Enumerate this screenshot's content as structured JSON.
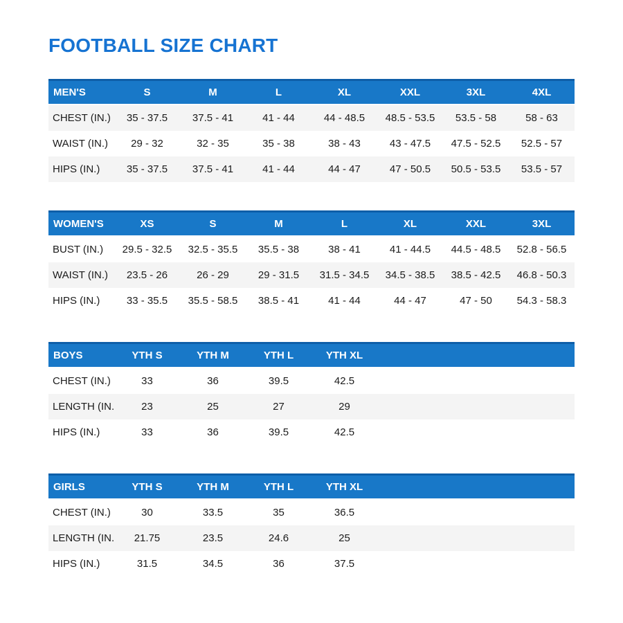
{
  "page": {
    "title": "FOOTBALL SIZE CHART"
  },
  "colors": {
    "accent_blue": "#1673d2",
    "header_blue": "#1878c8",
    "header_border": "#0e5ea8",
    "stripe_gray": "#f4f4f4",
    "text_dark": "#1b1b1b"
  },
  "tables": [
    {
      "id": "mens",
      "header": [
        "MEN'S",
        "S",
        "M",
        "L",
        "XL",
        "XXL",
        "3XL",
        "4XL"
      ],
      "rows": [
        {
          "label": "CHEST (IN.)",
          "striped": true,
          "values": [
            "35 - 37.5",
            "37.5 - 41",
            "41 - 44",
            "44 - 48.5",
            "48.5 - 53.5",
            "53.5 - 58",
            "58 - 63"
          ]
        },
        {
          "label": "WAIST (IN.)",
          "striped": false,
          "values": [
            "29 - 32",
            "32 - 35",
            "35 - 38",
            "38 - 43",
            "43 - 47.5",
            "47.5 - 52.5",
            "52.5 - 57"
          ]
        },
        {
          "label": "HIPS (IN.)",
          "striped": true,
          "values": [
            "35 - 37.5",
            "37.5 - 41",
            "41 - 44",
            "44 - 47",
            "47 - 50.5",
            "50.5 - 53.5",
            "53.5 - 57"
          ]
        }
      ]
    },
    {
      "id": "womens",
      "header": [
        "WOMEN'S",
        "XS",
        "S",
        "M",
        "L",
        "XL",
        "XXL",
        "3XL"
      ],
      "rows": [
        {
          "label": "BUST (IN.)",
          "striped": false,
          "values": [
            "29.5 - 32.5",
            "32.5 - 35.5",
            "35.5 - 38",
            "38 - 41",
            "41 - 44.5",
            "44.5 - 48.5",
            "52.8 - 56.5"
          ]
        },
        {
          "label": "WAIST (IN.)",
          "striped": true,
          "values": [
            "23.5 - 26",
            "26 - 29",
            "29 - 31.5",
            "31.5 - 34.5",
            "34.5 - 38.5",
            "38.5 - 42.5",
            "46.8 - 50.3"
          ]
        },
        {
          "label": "HIPS (IN.)",
          "striped": false,
          "values": [
            "33 - 35.5",
            "35.5 - 58.5",
            "38.5 - 41",
            "41 - 44",
            "44 - 47",
            "47 - 50",
            "54.3 - 58.3"
          ]
        }
      ]
    },
    {
      "id": "boys",
      "header": [
        "BOYS",
        "YTH S",
        "YTH M",
        "YTH L",
        "YTH XL"
      ],
      "rows": [
        {
          "label": "CHEST (IN.)",
          "striped": false,
          "values": [
            "33",
            "36",
            "39.5",
            "42.5"
          ]
        },
        {
          "label": "LENGTH (IN.)",
          "striped": true,
          "values": [
            "23",
            "25",
            "27",
            "29"
          ]
        },
        {
          "label": "HIPS (IN.)",
          "striped": false,
          "values": [
            "33",
            "36",
            "39.5",
            "42.5"
          ]
        }
      ]
    },
    {
      "id": "girls",
      "header": [
        "GIRLS",
        "YTH S",
        "YTH M",
        "YTH L",
        "YTH XL"
      ],
      "rows": [
        {
          "label": "CHEST (IN.)",
          "striped": false,
          "values": [
            "30",
            "33.5",
            "35",
            "36.5"
          ]
        },
        {
          "label": "LENGTH (IN.)",
          "striped": true,
          "values": [
            "21.75",
            "23.5",
            "24.6",
            "25"
          ]
        },
        {
          "label": "HIPS (IN.)",
          "striped": false,
          "values": [
            "31.5",
            "34.5",
            "36",
            "37.5"
          ]
        }
      ]
    }
  ]
}
